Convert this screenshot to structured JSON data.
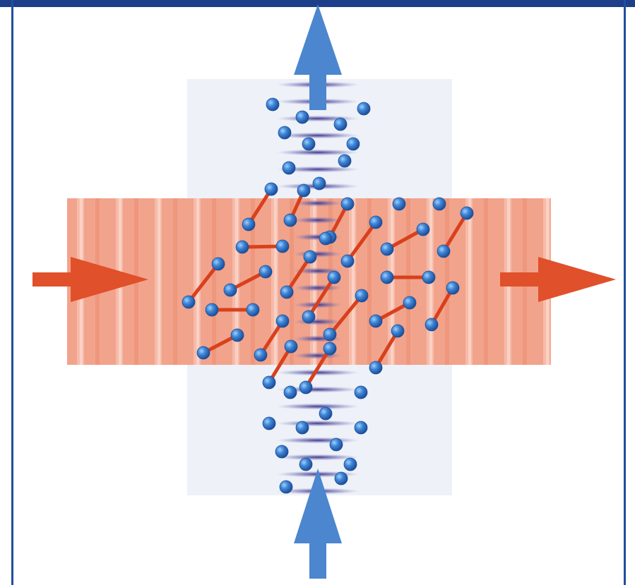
{
  "diagram": {
    "colors": {
      "frame": "#1f4f9e",
      "frame_top": "#1d3f8a",
      "blue_beam_panel": "#eef1f8",
      "red_beam": "#f2a58e",
      "red_arrow": "#e0502a",
      "blue_arrow": "#4b86cf",
      "atom": "#2f6fc0",
      "bond": "#d8401c",
      "fringe_dark": "#3a2a7a"
    },
    "icons": {
      "input_red": "arrow-right-icon",
      "output_red": "arrow-right-icon",
      "input_blue": "arrow-up-icon",
      "output_blue": "arrow-up-icon",
      "particle": "atom-icon",
      "pair": "molecule-icon"
    }
  }
}
